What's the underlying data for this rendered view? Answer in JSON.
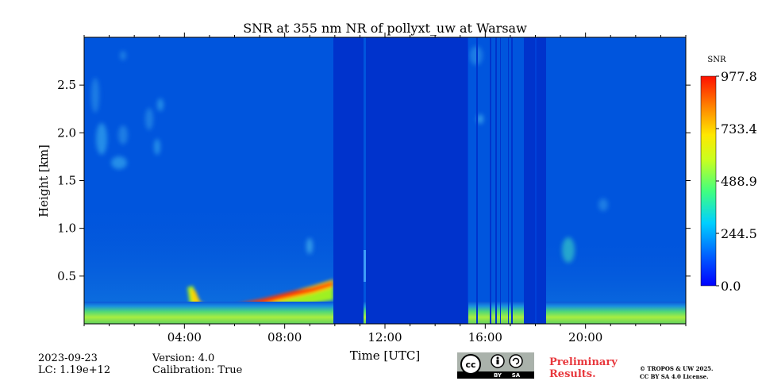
{
  "chart_data": {
    "type": "heatmap",
    "title": "SNR at 355 nm NR of pollyxt_uw at Warsaw",
    "xlabel": "Time [UTC]",
    "ylabel": "Height [km]",
    "xlim": [
      0,
      24
    ],
    "ylim": [
      0,
      3.0
    ],
    "x_ticks": [
      4,
      8,
      12,
      16,
      20
    ],
    "x_tick_labels": [
      "04:00",
      "08:00",
      "12:00",
      "16:00",
      "20:00"
    ],
    "y_ticks": [
      0.5,
      1.0,
      1.5,
      2.0,
      2.5
    ],
    "y_tick_labels": [
      "0.5",
      "1.0",
      "1.5",
      "2.0",
      "2.5"
    ],
    "colorbar": {
      "label": "SNR",
      "min": 0.0,
      "max": 977.8,
      "ticks": [
        0.0,
        244.5,
        488.9,
        733.4,
        977.8
      ],
      "tick_labels": [
        "0.0",
        "244.5",
        "488.9",
        "733.4",
        "977.8"
      ],
      "colormap": "jet"
    },
    "features": {
      "surface_layer_top_km": 0.12,
      "aerosol_layer_path": [
        [
          3.9,
          0.35
        ],
        [
          4.5,
          0.2
        ],
        [
          6.5,
          0.2
        ],
        [
          8.0,
          0.28
        ],
        [
          9.95,
          0.45
        ]
      ],
      "data_gap_hours": [
        [
          9.95,
          11.1
        ],
        [
          11.25,
          15.2
        ],
        [
          17.5,
          18.4
        ]
      ]
    }
  },
  "footer": {
    "date": "2023-09-23",
    "lc": "LC: 1.19e+12",
    "version": "Version: 4.0",
    "calibration": "Calibration: True",
    "preliminary_line1": "Preliminary",
    "preliminary_line2": "Results.",
    "copyright_line1": "© TROPOS & UW 2025.",
    "copyright_line2": "CC BY SA 4.0 License.",
    "cc_badge_text": "cc",
    "cc_by": "BY",
    "cc_sa": "SA"
  },
  "colors": {
    "background": "#0033cc",
    "high": "#ff2000",
    "preliminary": "#e8383d"
  }
}
